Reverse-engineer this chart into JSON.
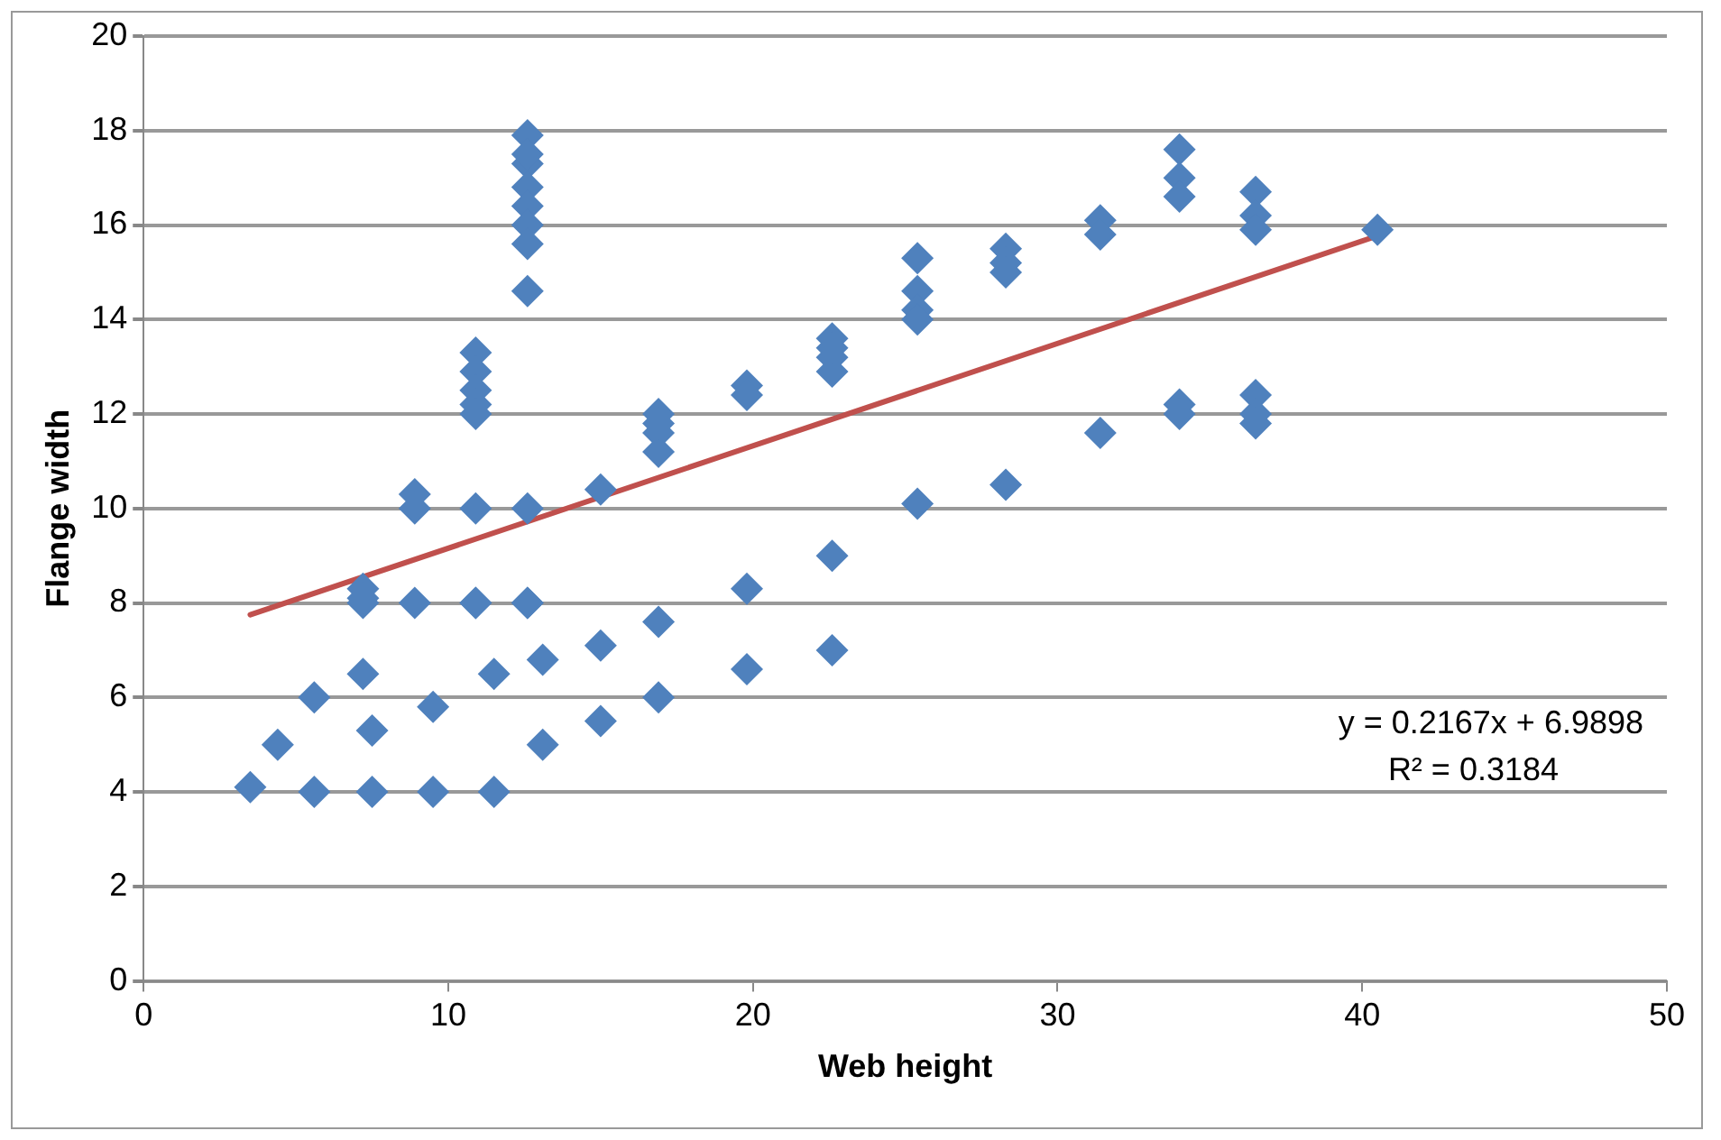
{
  "chart_data": {
    "type": "scatter",
    "xlabel": "Web height",
    "ylabel": "Flange width",
    "xlim": [
      0,
      50
    ],
    "xticks": [
      0,
      10,
      20,
      30,
      40,
      50
    ],
    "ylim": [
      0,
      20
    ],
    "yticks": [
      0,
      2,
      4,
      6,
      8,
      10,
      12,
      14,
      16,
      18,
      20
    ],
    "grid": "y",
    "legend": false,
    "marker": "diamond",
    "annotations": [
      "y = 0.2167x + 6.9898",
      "R² = 0.3184"
    ],
    "series": [
      {
        "color": "#4f81bd",
        "x": [
          3.5,
          4.4,
          5.6,
          5.6,
          7.2,
          7.2,
          7.2,
          7.2,
          7.5,
          7.5,
          8.9,
          8.9,
          8.9,
          9.5,
          9.5,
          10.9,
          10.9,
          10.9,
          10.9,
          10.9,
          10.9,
          10.9,
          10.9,
          11.5,
          11.5,
          12.6,
          12.6,
          12.6,
          12.6,
          12.6,
          12.6,
          12.6,
          12.6,
          12.6,
          12.6,
          12.6,
          13.1,
          13.1,
          15.0,
          15.0,
          15.0,
          16.9,
          16.9,
          16.9,
          16.9,
          16.9,
          16.9,
          19.8,
          19.8,
          19.8,
          19.8,
          22.6,
          22.6,
          22.6,
          22.6,
          22.6,
          22.6,
          25.4,
          25.4,
          25.4,
          25.4,
          25.4,
          28.3,
          28.3,
          28.3,
          28.3,
          31.4,
          31.4,
          31.4,
          34.0,
          34.0,
          34.0,
          34.0,
          34.0,
          36.5,
          36.5,
          36.5,
          36.5,
          36.5,
          36.5,
          40.5
        ],
        "values": [
          4.1,
          5.0,
          6.0,
          4.0,
          8.0,
          8.3,
          8.1,
          6.5,
          5.3,
          4.0,
          10.3,
          10.0,
          8.0,
          5.8,
          4.0,
          13.3,
          12.9,
          12.5,
          12.2,
          12.0,
          10.0,
          8.0,
          8.0,
          6.5,
          4.0,
          17.9,
          17.3,
          16.8,
          16.4,
          16.0,
          15.6,
          14.6,
          10.0,
          8.0,
          8.0,
          17.5,
          6.8,
          5.0,
          10.4,
          7.1,
          5.5,
          12.0,
          11.6,
          11.2,
          7.6,
          6.0,
          11.8,
          12.6,
          12.4,
          8.3,
          6.6,
          13.6,
          13.2,
          12.9,
          9.0,
          7.0,
          13.4,
          15.3,
          14.6,
          14.2,
          10.1,
          14.0,
          15.5,
          15.2,
          15.0,
          10.5,
          16.1,
          15.8,
          11.6,
          17.6,
          17.0,
          16.6,
          12.2,
          12.0,
          16.7,
          16.2,
          15.9,
          12.4,
          12.0,
          11.8,
          15.9
        ]
      },
      {
        "type": "line",
        "color": "#c0504d",
        "marker": "none",
        "x": [
          3.5,
          40.5
        ],
        "values": [
          7.75,
          15.77
        ]
      }
    ]
  }
}
